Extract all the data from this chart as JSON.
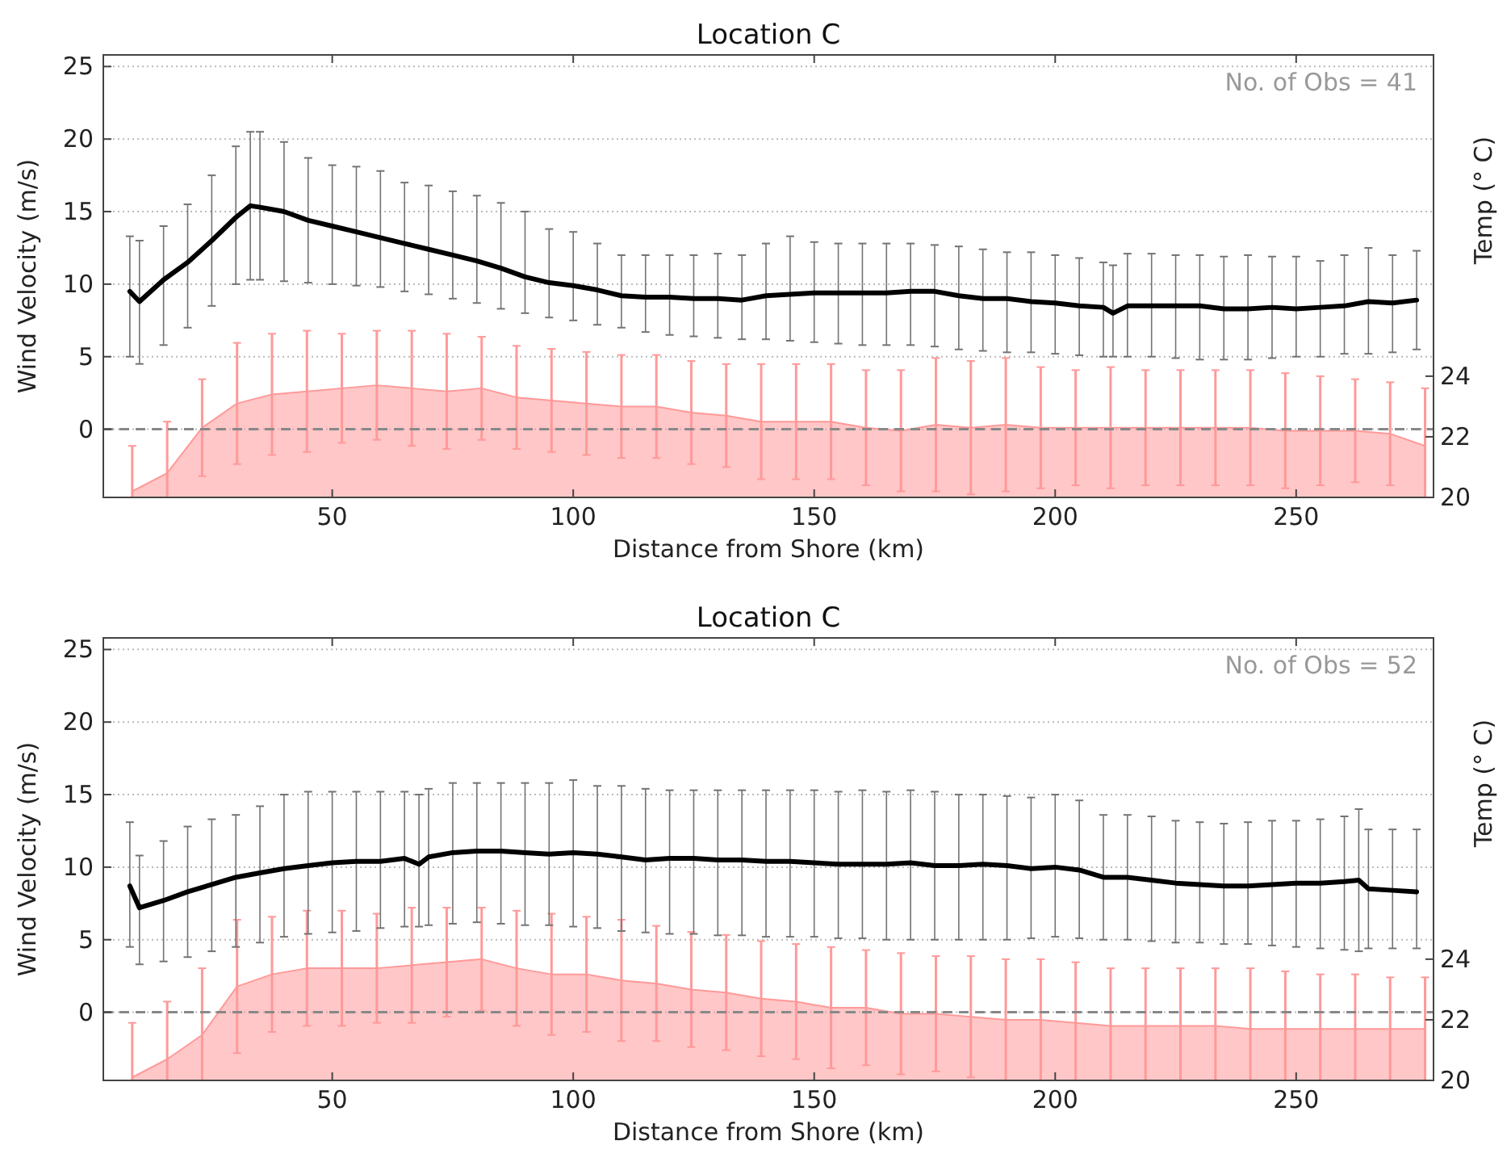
{
  "chart_data": [
    {
      "type": "line",
      "title": "Location C",
      "xlabel": "Distance from Shore (km)",
      "ylabel": "Wind Velocity (m/s)",
      "y2label": "Temp (° C)",
      "annotations": [
        "No. of Obs = 41"
      ],
      "xlim": [
        2.5,
        278.5
      ],
      "xticks": [
        50,
        100,
        150,
        200,
        250
      ],
      "ylim": [
        -4.7,
        25.8
      ],
      "yticks": [
        0,
        5,
        10,
        15,
        20,
        25
      ],
      "y2lim": [
        20,
        34.6
      ],
      "y2ticks": [
        20,
        22,
        24
      ],
      "grid": "y",
      "ref_lines": [
        {
          "axis": "y",
          "value": 0,
          "label": null,
          "color": "#888888",
          "line_style": "dashed"
        }
      ],
      "series": [
        {
          "color": "#000000",
          "x": [
            8,
            10,
            15,
            20,
            25,
            30,
            33,
            35,
            40,
            45,
            50,
            55,
            60,
            65,
            70,
            75,
            80,
            85,
            90,
            95,
            100,
            105,
            110,
            115,
            120,
            125,
            130,
            135,
            140,
            145,
            150,
            155,
            160,
            165,
            170,
            175,
            180,
            185,
            190,
            195,
            200,
            205,
            210,
            212,
            215,
            220,
            225,
            230,
            235,
            240,
            245,
            250,
            255,
            260,
            265,
            270,
            275
          ],
          "values": [
            9.5,
            8.8,
            10.3,
            11.5,
            13.0,
            14.6,
            15.4,
            15.3,
            15.0,
            14.4,
            14.0,
            13.6,
            13.2,
            12.8,
            12.4,
            12.0,
            11.6,
            11.1,
            10.5,
            10.1,
            9.9,
            9.6,
            9.2,
            9.1,
            9.1,
            9.0,
            9.0,
            8.9,
            9.2,
            9.3,
            9.4,
            9.4,
            9.4,
            9.4,
            9.5,
            9.5,
            9.2,
            9.0,
            9.0,
            8.8,
            8.7,
            8.5,
            8.4,
            8.0,
            8.5,
            8.5,
            8.5,
            8.5,
            8.3,
            8.3,
            8.4,
            8.3,
            8.4,
            8.5,
            8.8,
            8.7,
            8.9
          ],
          "errors": [
            [
              5.0,
              13.3
            ],
            [
              4.5,
              13.0
            ],
            [
              5.8,
              14.0
            ],
            [
              7.0,
              15.5
            ],
            [
              8.5,
              17.5
            ],
            [
              10.0,
              19.5
            ],
            [
              10.3,
              20.5
            ],
            [
              10.3,
              20.5
            ],
            [
              10.2,
              19.8
            ],
            [
              10.1,
              18.7
            ],
            [
              10.0,
              18.2
            ],
            [
              9.9,
              18.1
            ],
            [
              9.8,
              17.8
            ],
            [
              9.5,
              17.0
            ],
            [
              9.3,
              16.8
            ],
            [
              9.0,
              16.4
            ],
            [
              8.7,
              16.1
            ],
            [
              8.3,
              15.6
            ],
            [
              8.0,
              15.0
            ],
            [
              7.7,
              13.8
            ],
            [
              7.5,
              13.6
            ],
            [
              7.2,
              12.8
            ],
            [
              7.0,
              12.0
            ],
            [
              6.7,
              12.0
            ],
            [
              6.5,
              12.0
            ],
            [
              6.4,
              12.0
            ],
            [
              6.3,
              12.1
            ],
            [
              6.2,
              12.0
            ],
            [
              6.2,
              12.8
            ],
            [
              6.1,
              13.3
            ],
            [
              6.0,
              12.9
            ],
            [
              5.9,
              12.8
            ],
            [
              5.8,
              12.8
            ],
            [
              5.8,
              12.8
            ],
            [
              5.8,
              12.8
            ],
            [
              5.7,
              12.7
            ],
            [
              5.5,
              12.6
            ],
            [
              5.4,
              12.4
            ],
            [
              5.3,
              12.2
            ],
            [
              5.3,
              12.2
            ],
            [
              5.2,
              12.0
            ],
            [
              5.1,
              11.8
            ],
            [
              5.0,
              11.5
            ],
            [
              5.0,
              11.3
            ],
            [
              5.0,
              12.1
            ],
            [
              5.0,
              12.1
            ],
            [
              4.9,
              12.0
            ],
            [
              4.8,
              12.0
            ],
            [
              4.8,
              11.9
            ],
            [
              4.8,
              12.0
            ],
            [
              4.9,
              11.9
            ],
            [
              5.0,
              11.9
            ],
            [
              5.0,
              11.6
            ],
            [
              5.2,
              12.0
            ],
            [
              5.2,
              12.5
            ],
            [
              5.3,
              12.0
            ],
            [
              5.5,
              12.3
            ]
          ]
        },
        {
          "type": "area",
          "axis": "y2",
          "color": "#ff9999",
          "x": [
            8.5,
            15.75,
            23,
            30.25,
            37.5,
            44.75,
            52,
            59.25,
            66.5,
            73.75,
            81,
            88.25,
            95.5,
            102.75,
            110,
            117.25,
            124.5,
            131.75,
            139,
            146.25,
            153.5,
            160.75,
            168,
            175.25,
            182.5,
            189.75,
            197,
            204.25,
            211.5,
            218.75,
            226,
            233.25,
            240.5,
            247.75,
            255,
            262.25,
            269.5,
            276.75
          ],
          "values": [
            20.2,
            20.8,
            22.3,
            23.1,
            23.4,
            23.5,
            23.6,
            23.7,
            23.6,
            23.5,
            23.6,
            23.3,
            23.2,
            23.1,
            23.0,
            23.0,
            22.8,
            22.7,
            22.5,
            22.5,
            22.5,
            22.3,
            22.2,
            22.4,
            22.3,
            22.4,
            22.3,
            22.3,
            22.3,
            22.3,
            22.3,
            22.3,
            22.3,
            22.2,
            22.2,
            22.2,
            22.1,
            21.7
          ],
          "errors": [
            [
              20.0,
              21.7
            ],
            [
              20.0,
              22.5
            ],
            [
              20.7,
              23.9
            ],
            [
              21.1,
              25.1
            ],
            [
              21.4,
              25.4
            ],
            [
              21.5,
              25.5
            ],
            [
              21.8,
              25.4
            ],
            [
              21.9,
              25.5
            ],
            [
              21.7,
              25.5
            ],
            [
              21.6,
              25.4
            ],
            [
              21.9,
              25.3
            ],
            [
              21.6,
              25.0
            ],
            [
              21.5,
              24.9
            ],
            [
              21.4,
              24.8
            ],
            [
              21.3,
              24.7
            ],
            [
              21.3,
              24.7
            ],
            [
              21.1,
              24.5
            ],
            [
              21.0,
              24.4
            ],
            [
              20.6,
              24.4
            ],
            [
              20.6,
              24.4
            ],
            [
              20.6,
              24.4
            ],
            [
              20.4,
              24.2
            ],
            [
              20.2,
              24.2
            ],
            [
              20.2,
              24.6
            ],
            [
              20.1,
              24.5
            ],
            [
              20.2,
              24.6
            ],
            [
              20.3,
              24.3
            ],
            [
              20.4,
              24.2
            ],
            [
              20.3,
              24.3
            ],
            [
              20.4,
              24.2
            ],
            [
              20.4,
              24.2
            ],
            [
              20.4,
              24.2
            ],
            [
              20.4,
              24.2
            ],
            [
              20.3,
              24.1
            ],
            [
              20.4,
              24.0
            ],
            [
              20.5,
              23.9
            ],
            [
              20.4,
              23.8
            ],
            [
              20.0,
              23.6
            ]
          ]
        }
      ]
    },
    {
      "type": "line",
      "title": "Location C",
      "xlabel": "Distance from Shore (km)",
      "ylabel": "Wind Velocity (m/s)",
      "y2label": "Temp (° C)",
      "annotations": [
        "No. of Obs = 52"
      ],
      "xlim": [
        2.5,
        278.5
      ],
      "xticks": [
        50,
        100,
        150,
        200,
        250
      ],
      "ylim": [
        -4.7,
        25.8
      ],
      "yticks": [
        0,
        5,
        10,
        15,
        20,
        25
      ],
      "y2lim": [
        20,
        34.6
      ],
      "y2ticks": [
        20,
        22,
        24
      ],
      "grid": "y",
      "ref_lines": [
        {
          "axis": "y",
          "value": 0,
          "label": null,
          "color": "#888888",
          "line_style": "dashed"
        }
      ],
      "series": [
        {
          "color": "#000000",
          "x": [
            8,
            10,
            15,
            20,
            25,
            30,
            35,
            40,
            45,
            50,
            55,
            60,
            65,
            68,
            70,
            75,
            80,
            85,
            90,
            95,
            100,
            105,
            110,
            115,
            120,
            125,
            130,
            135,
            140,
            145,
            150,
            155,
            160,
            165,
            170,
            175,
            180,
            185,
            190,
            195,
            200,
            205,
            210,
            215,
            220,
            225,
            230,
            235,
            240,
            245,
            250,
            255,
            260,
            263,
            265,
            270,
            275
          ],
          "values": [
            8.7,
            7.2,
            7.7,
            8.3,
            8.8,
            9.3,
            9.6,
            9.9,
            10.1,
            10.3,
            10.4,
            10.4,
            10.6,
            10.2,
            10.7,
            11.0,
            11.1,
            11.1,
            11.0,
            10.9,
            11.0,
            10.9,
            10.7,
            10.5,
            10.6,
            10.6,
            10.5,
            10.5,
            10.4,
            10.4,
            10.3,
            10.2,
            10.2,
            10.2,
            10.3,
            10.1,
            10.1,
            10.2,
            10.1,
            9.9,
            10.0,
            9.8,
            9.3,
            9.3,
            9.1,
            8.9,
            8.8,
            8.7,
            8.7,
            8.8,
            8.9,
            8.9,
            9.0,
            9.1,
            8.5,
            8.4,
            8.3
          ],
          "errors": [
            [
              4.5,
              13.1
            ],
            [
              3.3,
              10.8
            ],
            [
              3.5,
              11.8
            ],
            [
              3.8,
              12.8
            ],
            [
              4.2,
              13.3
            ],
            [
              4.5,
              13.6
            ],
            [
              4.8,
              14.2
            ],
            [
              5.2,
              15.0
            ],
            [
              5.4,
              15.2
            ],
            [
              5.5,
              15.2
            ],
            [
              5.6,
              15.2
            ],
            [
              5.8,
              15.2
            ],
            [
              5.9,
              15.2
            ],
            [
              5.9,
              15.0
            ],
            [
              6.0,
              15.4
            ],
            [
              6.1,
              15.8
            ],
            [
              6.2,
              15.8
            ],
            [
              6.1,
              15.8
            ],
            [
              6.0,
              15.8
            ],
            [
              6.0,
              15.8
            ],
            [
              5.9,
              16.0
            ],
            [
              5.8,
              15.6
            ],
            [
              5.6,
              15.6
            ],
            [
              5.5,
              15.4
            ],
            [
              5.4,
              15.3
            ],
            [
              5.4,
              15.3
            ],
            [
              5.3,
              15.3
            ],
            [
              5.3,
              15.3
            ],
            [
              5.2,
              15.3
            ],
            [
              5.2,
              15.3
            ],
            [
              5.2,
              15.3
            ],
            [
              5.1,
              15.2
            ],
            [
              5.1,
              15.3
            ],
            [
              5.0,
              15.2
            ],
            [
              5.0,
              15.3
            ],
            [
              5.0,
              15.2
            ],
            [
              5.0,
              15.0
            ],
            [
              5.0,
              15.0
            ],
            [
              5.0,
              14.9
            ],
            [
              5.1,
              14.8
            ],
            [
              5.2,
              15.0
            ],
            [
              5.1,
              14.6
            ],
            [
              5.0,
              13.6
            ],
            [
              5.0,
              13.6
            ],
            [
              4.9,
              13.5
            ],
            [
              4.8,
              13.2
            ],
            [
              4.8,
              13.1
            ],
            [
              4.7,
              13.0
            ],
            [
              4.7,
              13.1
            ],
            [
              4.6,
              13.2
            ],
            [
              4.5,
              13.2
            ],
            [
              4.4,
              13.3
            ],
            [
              4.3,
              13.5
            ],
            [
              4.2,
              14.0
            ],
            [
              4.4,
              12.6
            ],
            [
              4.4,
              12.6
            ],
            [
              4.4,
              12.6
            ]
          ]
        },
        {
          "type": "area",
          "axis": "y2",
          "color": "#ff9999",
          "x": [
            8.5,
            15.75,
            23,
            30.25,
            37.5,
            44.75,
            52,
            59.25,
            66.5,
            73.75,
            81,
            88.25,
            95.5,
            102.75,
            110,
            117.25,
            124.5,
            131.75,
            139,
            146.25,
            153.5,
            160.75,
            168,
            175.25,
            182.5,
            189.75,
            197,
            204.25,
            211.5,
            218.75,
            226,
            233.25,
            240.5,
            247.75,
            255,
            262.25,
            269.5,
            276.75
          ],
          "values": [
            20.1,
            20.7,
            21.5,
            23.1,
            23.5,
            23.7,
            23.7,
            23.7,
            23.8,
            23.9,
            24.0,
            23.7,
            23.5,
            23.5,
            23.3,
            23.2,
            23.0,
            22.9,
            22.7,
            22.6,
            22.4,
            22.4,
            22.2,
            22.2,
            22.1,
            22.0,
            22.0,
            21.9,
            21.8,
            21.8,
            21.8,
            21.8,
            21.7,
            21.7,
            21.7,
            21.7,
            21.7,
            21.7
          ],
          "errors": [
            [
              20.0,
              21.9
            ],
            [
              20.0,
              22.6
            ],
            [
              20.0,
              23.7
            ],
            [
              20.9,
              25.3
            ],
            [
              21.6,
              25.4
            ],
            [
              21.8,
              25.6
            ],
            [
              21.8,
              25.6
            ],
            [
              21.9,
              25.5
            ],
            [
              21.9,
              25.7
            ],
            [
              22.1,
              25.7
            ],
            [
              22.3,
              25.7
            ],
            [
              21.8,
              25.6
            ],
            [
              21.5,
              25.5
            ],
            [
              21.6,
              25.4
            ],
            [
              21.3,
              25.3
            ],
            [
              21.3,
              25.1
            ],
            [
              21.1,
              24.9
            ],
            [
              21.0,
              24.8
            ],
            [
              20.8,
              24.6
            ],
            [
              20.7,
              24.5
            ],
            [
              20.4,
              24.4
            ],
            [
              20.5,
              24.3
            ],
            [
              20.2,
              24.2
            ],
            [
              20.3,
              24.1
            ],
            [
              20.1,
              24.1
            ],
            [
              20.0,
              24.0
            ],
            [
              20.0,
              24.0
            ],
            [
              20.0,
              23.9
            ],
            [
              20.0,
              23.7
            ],
            [
              20.0,
              23.7
            ],
            [
              20.0,
              23.7
            ],
            [
              20.0,
              23.7
            ],
            [
              20.0,
              23.7
            ],
            [
              20.0,
              23.6
            ],
            [
              20.0,
              23.5
            ],
            [
              20.0,
              23.5
            ],
            [
              20.0,
              23.4
            ],
            [
              20.0,
              23.4
            ]
          ]
        }
      ]
    }
  ]
}
